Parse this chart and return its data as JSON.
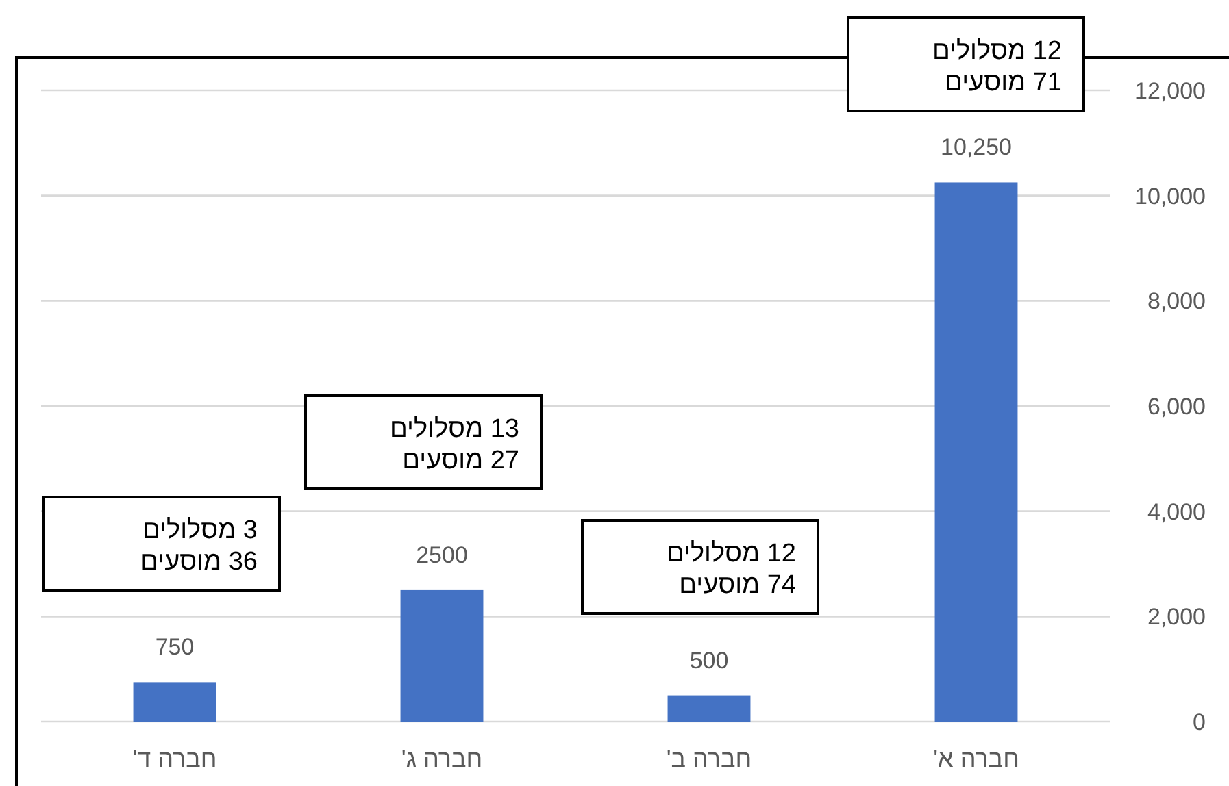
{
  "chart_data": {
    "type": "bar",
    "categories": [
      "חברה ד'",
      "חברה ג'",
      "חברה ב'",
      "חברה א'"
    ],
    "values": [
      750,
      2500,
      500,
      10250
    ],
    "value_labels": [
      "750",
      "2500",
      "500",
      "10,250"
    ],
    "color": "#4472c4",
    "ylim": [
      0,
      12000
    ],
    "yticks": [
      {
        "value": 0,
        "label": "0"
      },
      {
        "value": 2000,
        "label": "2,000"
      },
      {
        "value": 4000,
        "label": "4,000"
      },
      {
        "value": 6000,
        "label": "6,000"
      },
      {
        "value": 8000,
        "label": "8,000"
      },
      {
        "value": 10000,
        "label": "10,000"
      },
      {
        "value": 12000,
        "label": "12,000"
      }
    ],
    "grid": "y",
    "annotations": [
      "3 מסלולים\n36 מוסעים",
      "13 מסלולים\n27 מוסעים",
      "12 מסלולים\n74 מוסעים",
      "12 מסלולים\n71 מוסעים"
    ]
  }
}
